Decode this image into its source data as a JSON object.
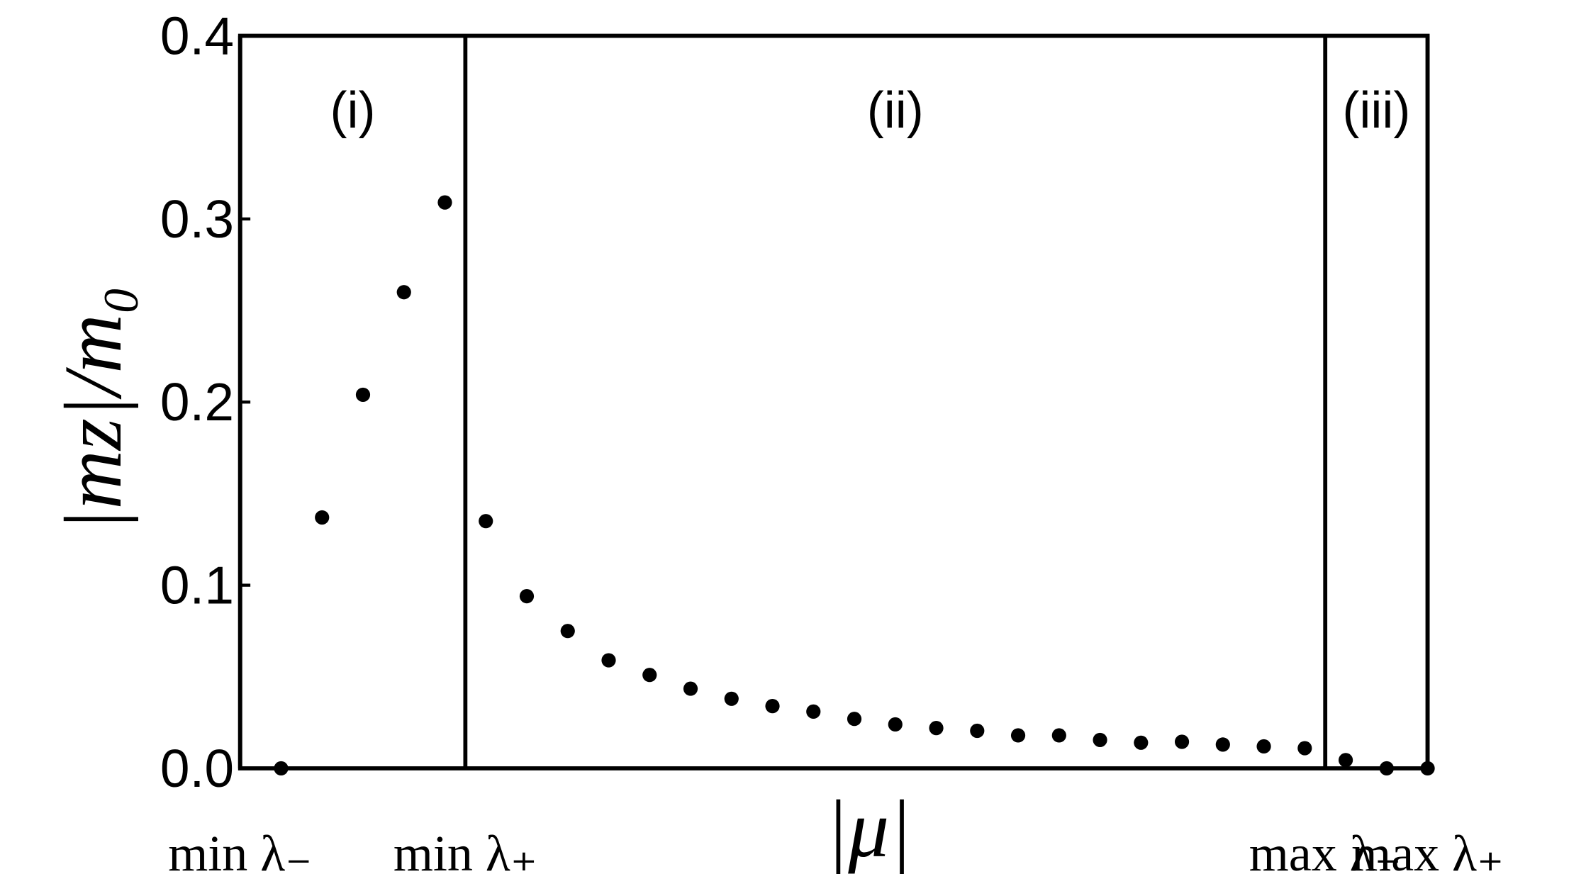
{
  "chart_data": {
    "type": "scatter",
    "xlabel": "|μ|",
    "ylabel": "|mz|/m₀",
    "x": [
      0,
      1,
      2,
      3,
      4,
      5,
      6,
      7,
      8,
      9,
      10,
      11,
      12,
      13,
      14,
      15,
      16,
      17,
      18,
      19,
      20,
      21,
      22,
      23,
      24,
      25,
      26,
      27,
      28
    ],
    "values": [
      0,
      0.137,
      0.204,
      0.26,
      0.309,
      0.135,
      0.094,
      0.075,
      0.059,
      0.051,
      0.0435,
      0.038,
      0.034,
      0.031,
      0.027,
      0.024,
      0.022,
      0.0205,
      0.018,
      0.018,
      0.0155,
      0.014,
      0.0145,
      0.013,
      0.012,
      0.011,
      0.0045,
      0,
      0
    ],
    "color": "#000000",
    "xlim": [
      -1,
      28
    ],
    "xticks": [
      {
        "value": -1,
        "label": "min λ₋"
      },
      {
        "value": 4.5,
        "label": "min λ₊"
      },
      {
        "value": 25.5,
        "label": "max λ₋"
      },
      {
        "value": 28,
        "label": "max λ₊"
      }
    ],
    "ylim": [
      0,
      0.4
    ],
    "yticks": [
      {
        "value": 0,
        "label": "0.0"
      },
      {
        "value": 0.1,
        "label": "0.1"
      },
      {
        "value": 0.2,
        "label": "0.2"
      },
      {
        "value": 0.3,
        "label": "0.3"
      },
      {
        "value": 0.4,
        "label": "0.4"
      }
    ],
    "annotations": [
      {
        "text": "(i)",
        "x": 1.75
      },
      {
        "text": "(ii)",
        "x": 15
      },
      {
        "text": "(iii)",
        "x": 26.75
      }
    ]
  }
}
